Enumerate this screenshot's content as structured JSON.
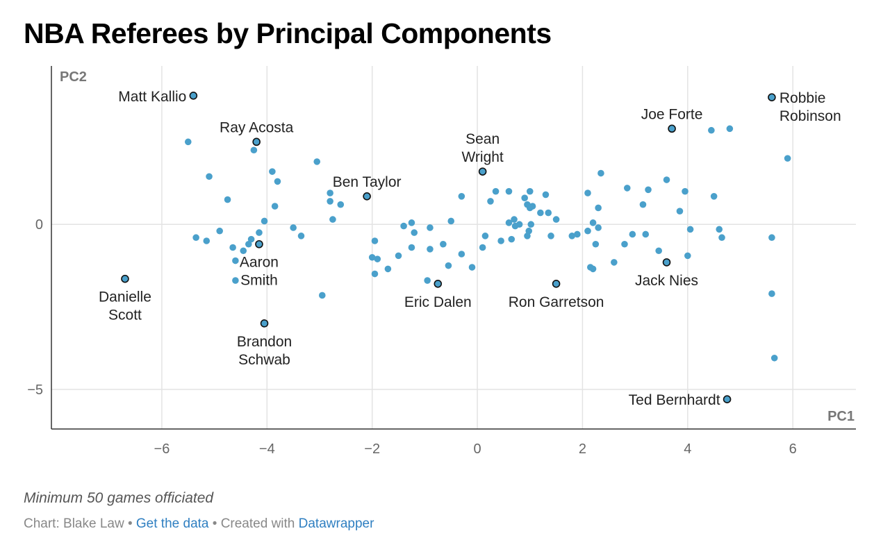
{
  "title": "NBA Referees by Principal Components",
  "notes": "Minimum 50 games officiated",
  "byline": {
    "prefix": "Chart: Blake Law",
    "sep1": " • ",
    "link1": "Get the data",
    "sep2": " • Created with ",
    "link2": "Datawrapper"
  },
  "colors": {
    "point": "#4aa0cb",
    "highlight_stroke": "#111111",
    "grid": "#e3e3e3",
    "axis": "#333333"
  },
  "chart_data": {
    "type": "scatter",
    "title": "NBA Referees by Principal Components",
    "xlabel": "PC1",
    "ylabel": "PC2",
    "xlim": [
      -8.1,
      7.2
    ],
    "ylim": [
      -6.2,
      4.8
    ],
    "x_ticks": [
      -6,
      -4,
      -2,
      0,
      2,
      4,
      6
    ],
    "y_ticks": [
      0,
      -5
    ],
    "tick_labels": {
      "x": [
        "−6",
        "−4",
        "−2",
        "0",
        "2",
        "4",
        "6"
      ],
      "y": [
        "0",
        "−5"
      ]
    },
    "grid": true,
    "labeled_points": [
      {
        "name": "Matt Kallio",
        "lines": [
          "Matt Kallio"
        ],
        "x": -5.4,
        "y": 3.9,
        "pos": "left"
      },
      {
        "name": "Ray Acosta",
        "lines": [
          "Ray Acosta"
        ],
        "x": -4.2,
        "y": 2.5,
        "pos": "above"
      },
      {
        "name": "Ben Taylor",
        "lines": [
          "Ben Taylor"
        ],
        "x": -2.1,
        "y": 0.85,
        "pos": "above"
      },
      {
        "name": "Sean Wright",
        "lines": [
          "Sean",
          "Wright"
        ],
        "x": 0.1,
        "y": 1.6,
        "pos": "above"
      },
      {
        "name": "Joe Forte",
        "lines": [
          "Joe Forte"
        ],
        "x": 3.7,
        "y": 2.9,
        "pos": "above"
      },
      {
        "name": "Robbie Robinson",
        "lines": [
          "Robbie",
          "Robinson"
        ],
        "x": 5.6,
        "y": 3.85,
        "pos": "right"
      },
      {
        "name": "Aaron Smith",
        "lines": [
          "Aaron",
          "Smith"
        ],
        "x": -4.15,
        "y": -0.6,
        "pos": "below"
      },
      {
        "name": "Danielle Scott",
        "lines": [
          "Danielle",
          "Scott"
        ],
        "x": -6.7,
        "y": -1.65,
        "pos": "below"
      },
      {
        "name": "Brandon Schwab",
        "lines": [
          "Brandon",
          "Schwab"
        ],
        "x": -4.05,
        "y": -3.0,
        "pos": "below"
      },
      {
        "name": "Eric Dalen",
        "lines": [
          "Eric Dalen"
        ],
        "x": -0.75,
        "y": -1.8,
        "pos": "below"
      },
      {
        "name": "Ron Garretson",
        "lines": [
          "Ron Garretson"
        ],
        "x": 1.5,
        "y": -1.8,
        "pos": "below"
      },
      {
        "name": "Jack Nies",
        "lines": [
          "Jack Nies"
        ],
        "x": 3.6,
        "y": -1.15,
        "pos": "below"
      },
      {
        "name": "Ted Bernhardt",
        "lines": [
          "Ted Bernhardt"
        ],
        "x": 4.75,
        "y": -5.3,
        "pos": "left"
      }
    ],
    "points": [
      [
        -5.5,
        2.5
      ],
      [
        -5.35,
        -0.4
      ],
      [
        -5.15,
        -0.5
      ],
      [
        -5.1,
        1.45
      ],
      [
        -4.9,
        -0.2
      ],
      [
        -4.75,
        0.75
      ],
      [
        -4.65,
        -0.7
      ],
      [
        -4.6,
        -1.1
      ],
      [
        -4.6,
        -1.7
      ],
      [
        -4.45,
        -0.8
      ],
      [
        -4.35,
        -0.6
      ],
      [
        -4.3,
        -0.45
      ],
      [
        -4.25,
        2.25
      ],
      [
        -4.15,
        -0.25
      ],
      [
        -4.05,
        0.1
      ],
      [
        -3.9,
        1.6
      ],
      [
        -3.85,
        0.55
      ],
      [
        -3.8,
        1.3
      ],
      [
        -3.5,
        -0.1
      ],
      [
        -3.35,
        -0.35
      ],
      [
        -3.05,
        1.9
      ],
      [
        -2.95,
        -2.15
      ],
      [
        -2.8,
        0.95
      ],
      [
        -2.8,
        0.7
      ],
      [
        -2.75,
        0.15
      ],
      [
        -2.6,
        0.6
      ],
      [
        -2.0,
        -1.0
      ],
      [
        -1.95,
        -0.5
      ],
      [
        -1.95,
        -1.5
      ],
      [
        -1.9,
        -1.05
      ],
      [
        -1.7,
        -1.35
      ],
      [
        -1.5,
        -0.95
      ],
      [
        -1.4,
        -0.05
      ],
      [
        -1.25,
        0.05
      ],
      [
        -1.25,
        -0.7
      ],
      [
        -1.2,
        -0.25
      ],
      [
        -0.95,
        -1.7
      ],
      [
        -0.9,
        -0.1
      ],
      [
        -0.9,
        -0.75
      ],
      [
        -0.65,
        -0.6
      ],
      [
        -0.55,
        -1.25
      ],
      [
        -0.5,
        0.1
      ],
      [
        -0.3,
        0.85
      ],
      [
        -0.3,
        -0.9
      ],
      [
        -0.1,
        -1.3
      ],
      [
        0.1,
        -0.7
      ],
      [
        0.15,
        -0.35
      ],
      [
        0.25,
        0.7
      ],
      [
        0.35,
        1.0
      ],
      [
        0.45,
        -0.5
      ],
      [
        0.6,
        1.0
      ],
      [
        0.6,
        0.05
      ],
      [
        0.65,
        -0.45
      ],
      [
        0.7,
        0.15
      ],
      [
        0.72,
        -0.05
      ],
      [
        0.8,
        0.0
      ],
      [
        0.9,
        0.8
      ],
      [
        0.95,
        0.6
      ],
      [
        0.95,
        -0.35
      ],
      [
        0.98,
        -0.2
      ],
      [
        1.0,
        1.0
      ],
      [
        1.0,
        0.5
      ],
      [
        1.02,
        0.0
      ],
      [
        1.05,
        0.55
      ],
      [
        1.2,
        0.35
      ],
      [
        1.3,
        0.9
      ],
      [
        1.35,
        0.35
      ],
      [
        1.4,
        -0.35
      ],
      [
        1.5,
        0.15
      ],
      [
        1.8,
        -0.35
      ],
      [
        1.9,
        -0.3
      ],
      [
        2.1,
        0.95
      ],
      [
        2.1,
        -0.2
      ],
      [
        2.15,
        -1.3
      ],
      [
        2.2,
        -1.35
      ],
      [
        2.2,
        0.05
      ],
      [
        2.25,
        -0.6
      ],
      [
        2.3,
        0.5
      ],
      [
        2.3,
        -0.1
      ],
      [
        2.35,
        1.55
      ],
      [
        2.6,
        -1.15
      ],
      [
        2.8,
        -0.6
      ],
      [
        2.85,
        1.1
      ],
      [
        2.95,
        -0.3
      ],
      [
        3.15,
        0.6
      ],
      [
        3.2,
        -0.3
      ],
      [
        3.25,
        1.05
      ],
      [
        3.45,
        -0.8
      ],
      [
        3.6,
        1.35
      ],
      [
        3.85,
        0.4
      ],
      [
        3.95,
        1.0
      ],
      [
        4.0,
        -0.95
      ],
      [
        4.05,
        -0.15
      ],
      [
        4.45,
        2.85
      ],
      [
        4.5,
        0.85
      ],
      [
        4.6,
        -0.15
      ],
      [
        4.65,
        -0.4
      ],
      [
        4.8,
        2.9
      ],
      [
        5.6,
        -0.4
      ],
      [
        5.6,
        -2.1
      ],
      [
        5.65,
        -4.05
      ],
      [
        5.9,
        2.0
      ]
    ]
  }
}
